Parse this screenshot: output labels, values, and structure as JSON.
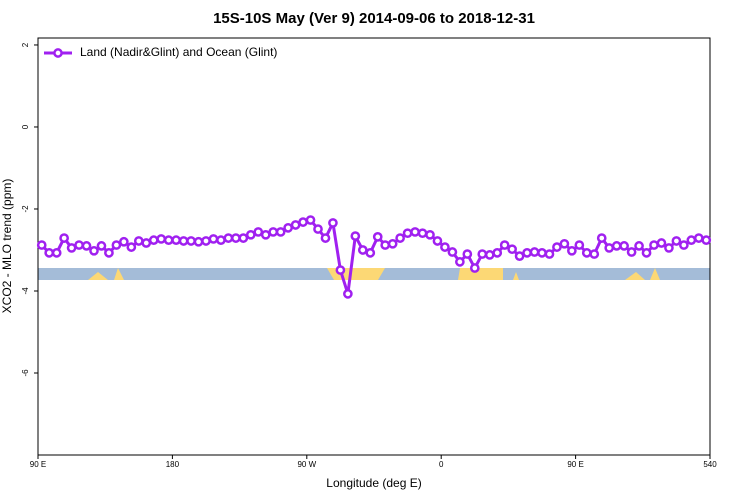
{
  "chart_data": {
    "type": "line",
    "title": "15S-10S May (Ver 9)   2014-09-06 to 2018-12-31",
    "x_label": "Longitude (deg E)",
    "y_label": "XCO2 - MLO trend (ppm)",
    "xlim": [
      90,
      540
    ],
    "ylim": [
      -8,
      2.17
    ],
    "xticks": [
      {
        "value": 90,
        "label": "90 E"
      },
      180,
      {
        "value": 270,
        "label": "90 W"
      },
      {
        "value": 360,
        "label": "0"
      },
      {
        "value": 450,
        "label": "90 E"
      },
      540
    ],
    "yticks": [
      2,
      0,
      -2,
      -4,
      -6
    ],
    "legend": "top-left",
    "x": [
      92.5,
      97.5,
      102.5,
      107.5,
      112.5,
      117.5,
      122.5,
      127.5,
      132.5,
      137.5,
      142.5,
      147.5,
      152.5,
      157.5,
      162.5,
      167.5,
      172.5,
      177.5,
      182.5,
      187.5,
      192.5,
      197.5,
      202.5,
      207.5,
      212.5,
      217.5,
      222.5,
      227.5,
      232.5,
      237.5,
      242.5,
      247.5,
      252.5,
      257.5,
      262.5,
      267.5,
      272.5,
      277.5,
      282.5,
      287.5,
      292.5,
      297.5,
      302.5,
      307.5,
      312.5,
      317.5,
      322.5,
      327.5,
      332.5,
      337.5,
      342.5,
      347.5,
      352.5,
      357.5,
      362.5,
      367.5,
      372.5,
      377.5,
      382.5,
      387.5,
      392.5,
      397.5,
      402.5,
      407.5,
      412.5,
      417.5,
      422.5,
      427.5,
      432.5,
      437.5,
      442.5,
      447.5,
      452.5,
      457.5,
      462.5,
      467.5,
      472.5,
      477.5,
      482.5,
      487.5,
      492.5,
      497.5,
      502.5,
      507.5,
      512.5,
      517.5,
      522.5,
      527.5,
      532.5,
      537.5
    ],
    "series": [
      {
        "name": "Land (Nadir&Glint) and Ocean (Glint)",
        "color": "#a020f0",
        "values": [
          -2.88,
          -3.07,
          -3.07,
          -2.71,
          -2.95,
          -2.88,
          -2.9,
          -3.02,
          -2.9,
          -3.07,
          -2.88,
          -2.8,
          -2.93,
          -2.78,
          -2.83,
          -2.76,
          -2.73,
          -2.76,
          -2.76,
          -2.78,
          -2.78,
          -2.8,
          -2.78,
          -2.73,
          -2.76,
          -2.71,
          -2.71,
          -2.71,
          -2.63,
          -2.56,
          -2.63,
          -2.56,
          -2.56,
          -2.46,
          -2.39,
          -2.32,
          -2.27,
          -2.49,
          -2.71,
          -2.34,
          -3.49,
          -4.07,
          -2.66,
          -3.0,
          -3.07,
          -2.68,
          -2.88,
          -2.85,
          -2.71,
          -2.59,
          -2.56,
          -2.59,
          -2.63,
          -2.78,
          -2.93,
          -3.05,
          -3.29,
          -3.1,
          -3.44,
          -3.1,
          -3.12,
          -3.07,
          -2.88,
          -2.98,
          -3.15,
          -3.07,
          -3.05,
          -3.07,
          -3.1,
          -2.93,
          -2.85,
          -3.02,
          -2.88,
          -3.07,
          -3.1,
          -2.71,
          -2.95,
          -2.9,
          -2.9,
          -3.05,
          -2.9,
          -3.07,
          -2.88,
          -2.83,
          -2.95,
          -2.78,
          -2.88,
          -2.76,
          -2.71,
          -2.76
        ]
      }
    ]
  }
}
